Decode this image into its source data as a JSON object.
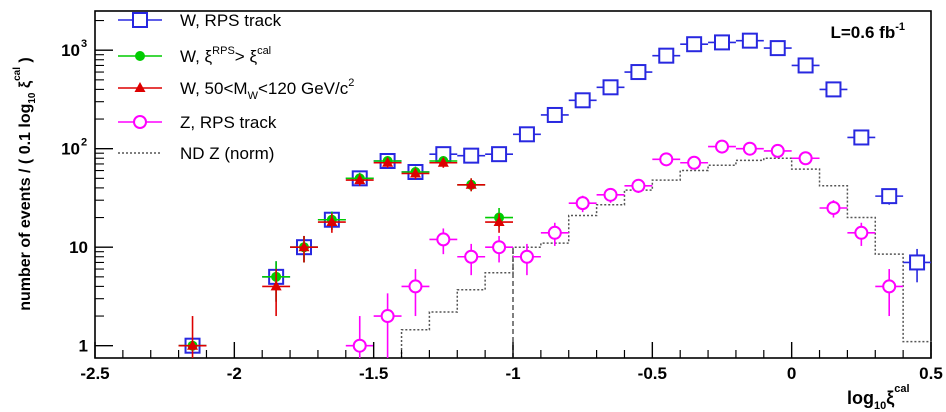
{
  "chart_data": {
    "type": "scatter",
    "title": "",
    "annotation": {
      "text": "L=0.6 fb",
      "sup": "-1"
    },
    "xlabel": {
      "text": "log",
      "sub": "10",
      "xi": "ξ",
      "sup": "cal"
    },
    "ylabel": {
      "before": "number of events / ( 0.1 log",
      "sub": "10",
      "xi": " ξ",
      "sup": "cal",
      "after": " )"
    },
    "xlim": [
      -2.5,
      0.5
    ],
    "ylim": [
      0.75,
      2500
    ],
    "yscale": "log",
    "grid": false,
    "legend_placement": "top-left",
    "x_ticks": [
      {
        "value": -2.5,
        "label": "-2.5"
      },
      {
        "value": -2,
        "label": "-2"
      },
      {
        "value": -1.5,
        "label": "-1.5"
      },
      {
        "value": -1,
        "label": "-1"
      },
      {
        "value": -0.5,
        "label": "-0.5"
      },
      {
        "value": 0,
        "label": "0"
      },
      {
        "value": 0.5,
        "label": "0.5"
      }
    ],
    "y_ticks": [
      {
        "value": 1,
        "label": "1",
        "sup": ""
      },
      {
        "value": 10,
        "label": "10",
        "sup": ""
      },
      {
        "value": 100,
        "label": "10",
        "sup": "2"
      },
      {
        "value": 1000,
        "label": "10",
        "sup": "3"
      }
    ],
    "bin_width": 0.1,
    "series": [
      {
        "name": "W, RPS track",
        "legend": [
          {
            "t": "W, RPS track"
          }
        ],
        "color": "#2828e0",
        "marker": "open-square",
        "points": [
          {
            "x": -2.15,
            "y": 1,
            "lo": 0,
            "hi": 0
          },
          {
            "x": -1.85,
            "y": 5,
            "lo": 2.8,
            "hi": 7.2
          },
          {
            "x": -1.75,
            "y": 10,
            "lo": 7,
            "hi": 13
          },
          {
            "x": -1.65,
            "y": 19,
            "lo": 15,
            "hi": 23
          },
          {
            "x": -1.55,
            "y": 50,
            "lo": 44,
            "hi": 57
          },
          {
            "x": -1.45,
            "y": 75,
            "lo": 67,
            "hi": 84
          },
          {
            "x": -1.35,
            "y": 58,
            "lo": 51,
            "hi": 66
          },
          {
            "x": -1.25,
            "y": 88,
            "lo": 80,
            "hi": 98
          },
          {
            "x": -1.15,
            "y": 85,
            "lo": 76,
            "hi": 94
          },
          {
            "x": -1.05,
            "y": 88,
            "lo": 80,
            "hi": 98
          },
          {
            "x": -0.95,
            "y": 140,
            "lo": 128,
            "hi": 152
          },
          {
            "x": -0.85,
            "y": 220,
            "lo": 205,
            "hi": 235
          },
          {
            "x": -0.75,
            "y": 310,
            "lo": 292,
            "hi": 328
          },
          {
            "x": -0.65,
            "y": 420,
            "lo": 400,
            "hi": 440
          },
          {
            "x": -0.55,
            "y": 600,
            "lo": 575,
            "hi": 625
          },
          {
            "x": -0.45,
            "y": 880,
            "lo": 850,
            "hi": 910
          },
          {
            "x": -0.35,
            "y": 1150,
            "lo": 1115,
            "hi": 1185
          },
          {
            "x": -0.25,
            "y": 1200,
            "lo": 1165,
            "hi": 1235
          },
          {
            "x": -0.15,
            "y": 1250,
            "lo": 1215,
            "hi": 1285
          },
          {
            "x": -0.05,
            "y": 1050,
            "lo": 1018,
            "hi": 1082
          },
          {
            "x": 0.05,
            "y": 700,
            "lo": 674,
            "hi": 726
          },
          {
            "x": 0.15,
            "y": 400,
            "lo": 380,
            "hi": 420
          },
          {
            "x": 0.25,
            "y": 130,
            "lo": 119,
            "hi": 141
          },
          {
            "x": 0.35,
            "y": 33,
            "lo": 27,
            "hi": 39
          },
          {
            "x": 0.45,
            "y": 7,
            "lo": 4.4,
            "hi": 9.6
          }
        ]
      },
      {
        "name": "W, ξ^RPS > ξ^cal",
        "legend": [
          {
            "t": "W, ξ"
          },
          {
            "t": "RPS",
            "s": "sup"
          },
          {
            "t": "> ξ"
          },
          {
            "t": "cal",
            "s": "sup"
          }
        ],
        "color": "#00cc00",
        "marker": "filled-circle",
        "points": [
          {
            "x": -2.15,
            "y": 1,
            "lo": 0,
            "hi": 0
          },
          {
            "x": -1.85,
            "y": 5,
            "lo": 2.8,
            "hi": 7.2
          },
          {
            "x": -1.75,
            "y": 10,
            "lo": 7,
            "hi": 13
          },
          {
            "x": -1.65,
            "y": 19,
            "lo": 15,
            "hi": 23
          },
          {
            "x": -1.55,
            "y": 50,
            "lo": 44,
            "hi": 57
          },
          {
            "x": -1.45,
            "y": 75,
            "lo": 67,
            "hi": 84
          },
          {
            "x": -1.35,
            "y": 58,
            "lo": 51,
            "hi": 66
          },
          {
            "x": -1.25,
            "y": 75,
            "lo": 67,
            "hi": 84
          },
          {
            "x": -1.15,
            "y": 43,
            "lo": 37,
            "hi": 50
          },
          {
            "x": -1.05,
            "y": 20,
            "lo": 16,
            "hi": 25
          }
        ]
      },
      {
        "name": "W, 50<M_W<120 GeV/c^2",
        "legend": [
          {
            "t": "W, 50<M"
          },
          {
            "t": "W",
            "s": "sub"
          },
          {
            "t": "<120 GeV/c"
          },
          {
            "t": "2",
            "s": "sup"
          }
        ],
        "color": "#dd0000",
        "marker": "filled-triangle",
        "points": [
          {
            "x": -2.15,
            "y": 1,
            "lo": 0,
            "hi": 2.0
          },
          {
            "x": -1.85,
            "y": 4,
            "lo": 2.0,
            "hi": 6.0
          },
          {
            "x": -1.75,
            "y": 10,
            "lo": 7,
            "hi": 13
          },
          {
            "x": -1.65,
            "y": 18,
            "lo": 14,
            "hi": 22
          },
          {
            "x": -1.55,
            "y": 48,
            "lo": 42,
            "hi": 55
          },
          {
            "x": -1.45,
            "y": 72,
            "lo": 64,
            "hi": 80
          },
          {
            "x": -1.35,
            "y": 56,
            "lo": 49,
            "hi": 63
          },
          {
            "x": -1.25,
            "y": 72,
            "lo": 64,
            "hi": 80
          },
          {
            "x": -1.15,
            "y": 43,
            "lo": 37,
            "hi": 50
          },
          {
            "x": -1.05,
            "y": 18,
            "lo": 14,
            "hi": 22
          }
        ]
      },
      {
        "name": "Z, RPS track",
        "legend": [
          {
            "t": "Z, RPS track"
          }
        ],
        "color": "#ff00ff",
        "marker": "open-circle",
        "points": [
          {
            "x": -1.55,
            "y": 1,
            "lo": 0,
            "hi": 2.0
          },
          {
            "x": -1.45,
            "y": 2,
            "lo": 0.75,
            "hi": 3.4
          },
          {
            "x": -1.35,
            "y": 4,
            "lo": 2.0,
            "hi": 6.0
          },
          {
            "x": -1.25,
            "y": 12,
            "lo": 8.5,
            "hi": 15.5
          },
          {
            "x": -1.15,
            "y": 8,
            "lo": 5.2,
            "hi": 10.8
          },
          {
            "x": -1.05,
            "y": 10,
            "lo": 7,
            "hi": 13
          },
          {
            "x": -0.95,
            "y": 8,
            "lo": 5.2,
            "hi": 10.8
          },
          {
            "x": -0.85,
            "y": 14,
            "lo": 10.3,
            "hi": 17.7
          },
          {
            "x": -0.75,
            "y": 28,
            "lo": 22.7,
            "hi": 33.3
          },
          {
            "x": -0.65,
            "y": 34,
            "lo": 28.2,
            "hi": 39.8
          },
          {
            "x": -0.55,
            "y": 42,
            "lo": 35.5,
            "hi": 48.5
          },
          {
            "x": -0.45,
            "y": 78,
            "lo": 69,
            "hi": 87
          },
          {
            "x": -0.35,
            "y": 72,
            "lo": 63.5,
            "hi": 80.5
          },
          {
            "x": -0.25,
            "y": 105,
            "lo": 95,
            "hi": 115
          },
          {
            "x": -0.15,
            "y": 100,
            "lo": 90,
            "hi": 110
          },
          {
            "x": -0.05,
            "y": 95,
            "lo": 85,
            "hi": 105
          },
          {
            "x": 0.05,
            "y": 80,
            "lo": 71,
            "hi": 89
          },
          {
            "x": 0.15,
            "y": 25,
            "lo": 20,
            "hi": 30
          },
          {
            "x": 0.25,
            "y": 14,
            "lo": 10.3,
            "hi": 17.7
          },
          {
            "x": 0.35,
            "y": 4,
            "lo": 2.0,
            "hi": 6.0
          }
        ]
      },
      {
        "name": "ND Z (norm)",
        "legend": [
          {
            "t": "ND Z (norm)"
          }
        ],
        "color": "#555555",
        "marker": "dotted-histogram",
        "bins": [
          {
            "x0": -1.4,
            "x1": -1.3,
            "y": 1.45
          },
          {
            "x0": -1.3,
            "x1": -1.2,
            "y": 2.2
          },
          {
            "x0": -1.2,
            "x1": -1.1,
            "y": 3.7
          },
          {
            "x0": -1.1,
            "x1": -1.0,
            "y": 5.5
          },
          {
            "x0": -1.0,
            "x1": -0.9,
            "y": 10
          },
          {
            "x0": -0.9,
            "x1": -0.8,
            "y": 11
          },
          {
            "x0": -0.8,
            "x1": -0.7,
            "y": 21
          },
          {
            "x0": -0.7,
            "x1": -0.6,
            "y": 27
          },
          {
            "x0": -0.6,
            "x1": -0.5,
            "y": 38
          },
          {
            "x0": -0.5,
            "x1": -0.4,
            "y": 48
          },
          {
            "x0": -0.4,
            "x1": -0.3,
            "y": 60
          },
          {
            "x0": -0.3,
            "x1": -0.2,
            "y": 68
          },
          {
            "x0": -0.2,
            "x1": -0.1,
            "y": 76
          },
          {
            "x0": -0.1,
            "x1": 0.0,
            "y": 80
          },
          {
            "x0": 0.0,
            "x1": 0.1,
            "y": 62
          },
          {
            "x0": 0.1,
            "x1": 0.2,
            "y": 42
          },
          {
            "x0": 0.2,
            "x1": 0.3,
            "y": 20
          },
          {
            "x0": 0.3,
            "x1": 0.4,
            "y": 8.5
          },
          {
            "x0": 0.4,
            "x1": 0.5,
            "y": 1.1
          }
        ],
        "edge_x": -1.0
      }
    ]
  }
}
